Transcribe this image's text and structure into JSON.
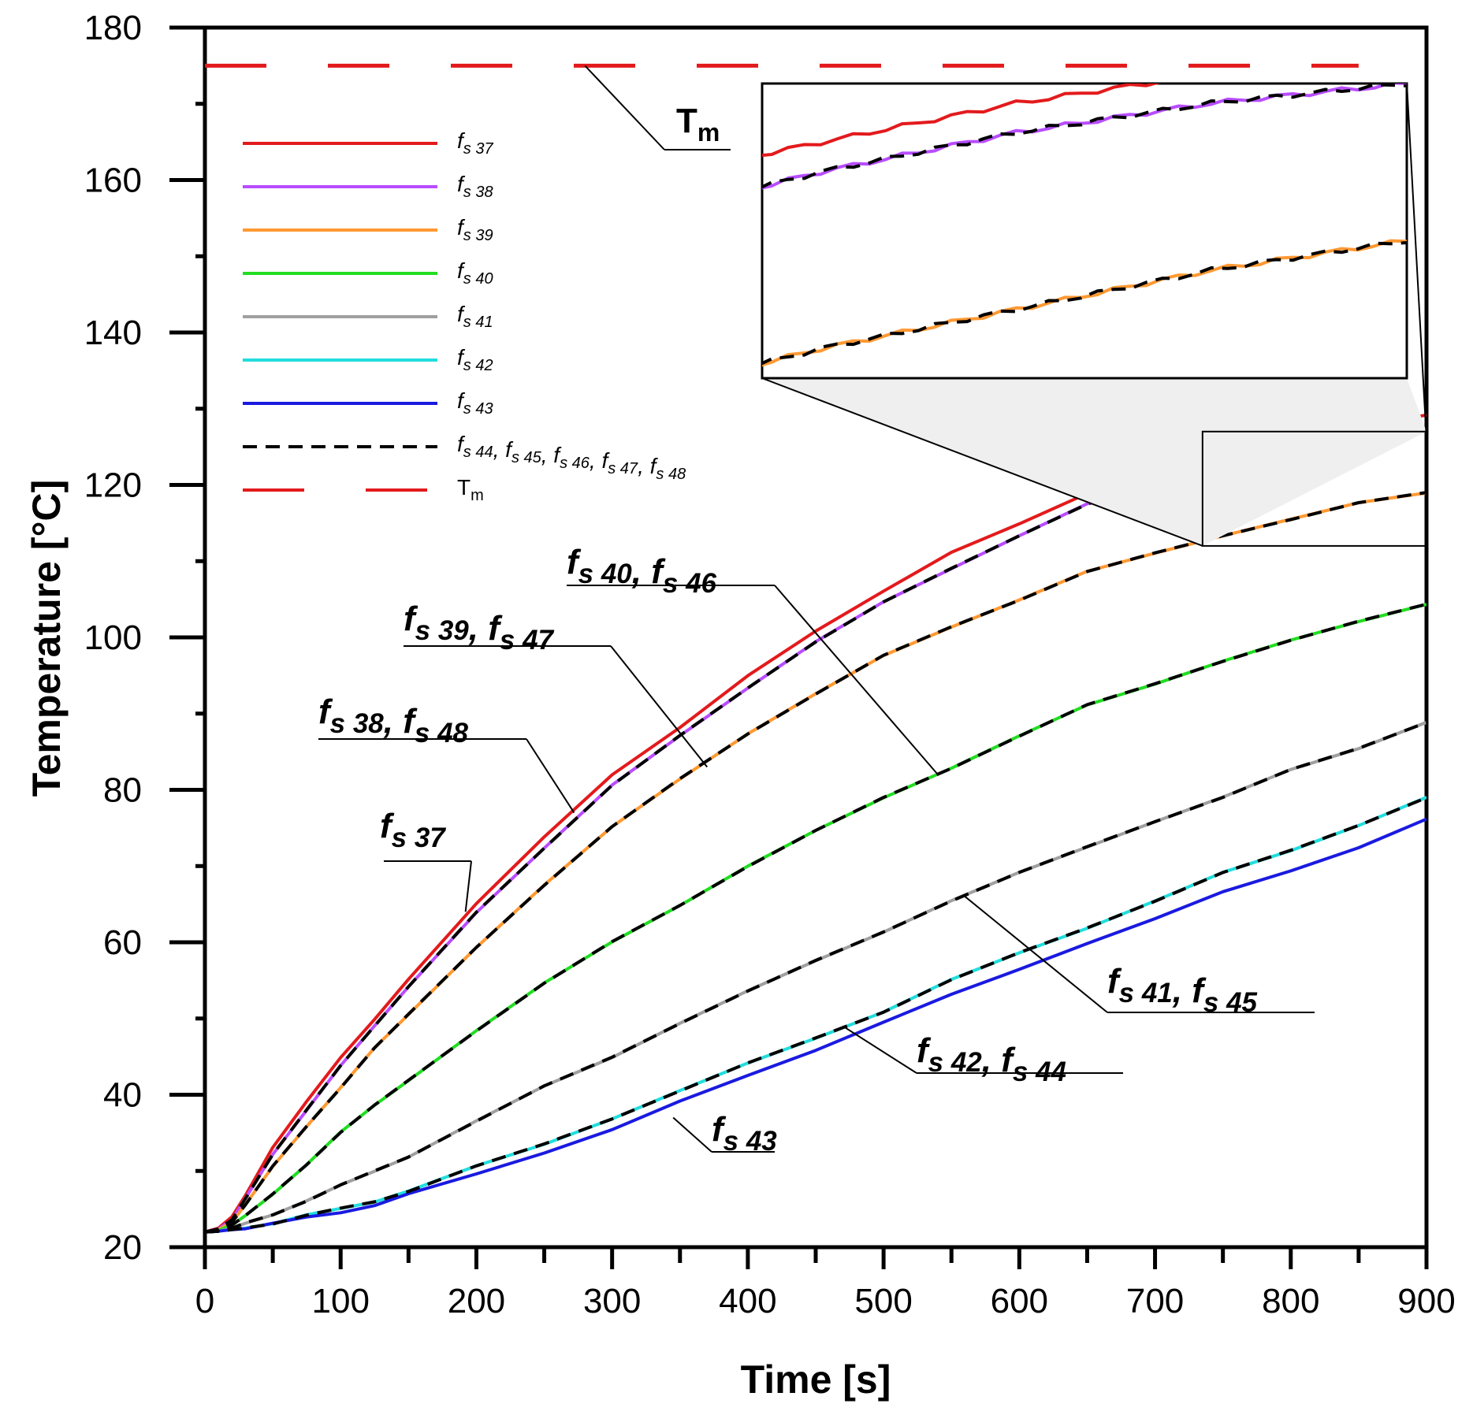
{
  "chart_data": {
    "type": "line",
    "xlabel": "Time [s]",
    "ylabel": "Temperature [°C]",
    "xlim": [
      0,
      900
    ],
    "ylim": [
      20,
      180
    ],
    "x_ticks": [
      0,
      100,
      200,
      300,
      400,
      500,
      600,
      700,
      800,
      900
    ],
    "y_ticks": [
      20,
      40,
      60,
      80,
      100,
      120,
      140,
      160,
      180
    ],
    "x": [
      0,
      10,
      20,
      30,
      50,
      75,
      100,
      125,
      150,
      200,
      250,
      300,
      350,
      400,
      450,
      500,
      550,
      600,
      650,
      700,
      750,
      800,
      850,
      900
    ],
    "series": [
      {
        "id": "fs37",
        "name": "f",
        "sub": "s 37",
        "color": "#e31a1c",
        "dash": "solid",
        "values": [
          22,
          22.5,
          24,
          27,
          33,
          39,
          45,
          50,
          55,
          65,
          74,
          82,
          88,
          95,
          101,
          106,
          111,
          115,
          119,
          122,
          124,
          126,
          127.5,
          129
        ]
      },
      {
        "id": "fs38",
        "name": "f",
        "sub": "s 38",
        "color": "#b84dff",
        "dash": "solid",
        "values": [
          22,
          22.4,
          23.6,
          26.5,
          32,
          38,
          44,
          49,
          54,
          64,
          72.5,
          80.5,
          87,
          93.5,
          99.5,
          104.5,
          109,
          113.5,
          117.5,
          120,
          122.5,
          124.5,
          126,
          127
        ]
      },
      {
        "id": "fs39",
        "name": "f",
        "sub": "s 39",
        "color": "#ff9933",
        "dash": "solid",
        "values": [
          22,
          22.3,
          23.3,
          25.5,
          30.5,
          36,
          41,
          46,
          50.5,
          59.5,
          67.5,
          75,
          81.5,
          87.5,
          92.5,
          97.5,
          101.5,
          105,
          108.5,
          111,
          113.5,
          115.5,
          117.5,
          119
        ]
      },
      {
        "id": "fs40",
        "name": "f",
        "sub": "s 40",
        "color": "#22dd22",
        "dash": "solid",
        "values": [
          22,
          22.2,
          22.9,
          24,
          27,
          31,
          35,
          38.5,
          42,
          48.5,
          54.5,
          60,
          65,
          70,
          74.5,
          79,
          83,
          87,
          91,
          94,
          97,
          99.5,
          102,
          104.5
        ]
      },
      {
        "id": "fs41",
        "name": "f",
        "sub": "s 41",
        "color": "#a0a0a0",
        "dash": "solid",
        "values": [
          22,
          22.1,
          22.5,
          23.1,
          24.4,
          26.1,
          28,
          30,
          32,
          36.5,
          41,
          45,
          49.5,
          53.5,
          57.5,
          61.5,
          65.5,
          69,
          72.5,
          76,
          79,
          82.5,
          85.5,
          89
        ]
      },
      {
        "id": "fs42",
        "name": "f",
        "sub": "s 42",
        "color": "#22dddd",
        "dash": "solid",
        "values": [
          22,
          22.1,
          22.3,
          22.6,
          23.2,
          24.1,
          25,
          26.1,
          27.4,
          30.5,
          33.5,
          37,
          40.5,
          44,
          47.5,
          51,
          55,
          58.5,
          62,
          65.5,
          69,
          72,
          75.5,
          79
        ]
      },
      {
        "id": "fs43",
        "name": "f",
        "sub": "s 43",
        "color": "#1a1ae0",
        "dash": "solid",
        "values": [
          22,
          22.1,
          22.3,
          22.6,
          23.1,
          23.8,
          24.6,
          25.6,
          26.9,
          29.5,
          32.5,
          35.5,
          39,
          42.5,
          46,
          49.5,
          53,
          56.5,
          60,
          63,
          66.5,
          69.5,
          72.5,
          76
        ]
      },
      {
        "id": "fs48",
        "name": "f",
        "sub": "s 48",
        "color": "#000000",
        "dash": "dashed",
        "values": [
          22,
          22.4,
          23.6,
          26.5,
          32,
          38,
          44,
          49,
          54,
          64,
          72.5,
          80.5,
          87,
          93.5,
          99.5,
          104.5,
          109,
          113.5,
          117.5,
          120,
          122.5,
          124.5,
          126,
          127
        ]
      },
      {
        "id": "fs47",
        "name": "f",
        "sub": "s 47",
        "color": "#000000",
        "dash": "dashed",
        "values": [
          22,
          22.3,
          23.3,
          25.5,
          30.5,
          36,
          41,
          46,
          50.5,
          59.5,
          67.5,
          75,
          81.5,
          87.5,
          92.5,
          97.5,
          101.5,
          105,
          108.5,
          111,
          113.5,
          115.5,
          117.5,
          119
        ]
      },
      {
        "id": "fs46",
        "name": "f",
        "sub": "s 46",
        "color": "#000000",
        "dash": "dashed",
        "values": [
          22,
          22.2,
          22.9,
          24,
          27,
          31,
          35,
          38.5,
          42,
          48.5,
          54.5,
          60,
          65,
          70,
          74.5,
          79,
          83,
          87,
          91,
          94,
          97,
          99.5,
          102,
          104.5
        ]
      },
      {
        "id": "fs45",
        "name": "f",
        "sub": "s 45",
        "color": "#000000",
        "dash": "dashed",
        "values": [
          22,
          22.1,
          22.5,
          23.1,
          24.4,
          26.1,
          28,
          30,
          32,
          36.5,
          41,
          45,
          49.5,
          53.5,
          57.5,
          61.5,
          65.5,
          69,
          72.5,
          76,
          79,
          82.5,
          85.5,
          89
        ]
      },
      {
        "id": "fs44",
        "name": "f",
        "sub": "s 44",
        "color": "#000000",
        "dash": "dashed",
        "values": [
          22,
          22.1,
          22.3,
          22.6,
          23.2,
          24.1,
          25,
          26.1,
          27.4,
          30.5,
          33.5,
          37,
          40.5,
          44,
          47.5,
          51,
          55,
          58.5,
          62,
          65.5,
          69,
          72,
          75.5,
          79
        ]
      }
    ],
    "reference_line": {
      "name": "T",
      "sub": "m",
      "y": 175,
      "color": "#e31a1c",
      "dash": "long-dash",
      "x_range": [
        0,
        850
      ]
    },
    "legend": {
      "position": "top-left",
      "entries": [
        {
          "text": "f",
          "sub": "s 37",
          "color": "#e31a1c",
          "dash": "solid"
        },
        {
          "text": "f",
          "sub": "s 38",
          "color": "#b84dff",
          "dash": "solid"
        },
        {
          "text": "f",
          "sub": "s 39",
          "color": "#ff9933",
          "dash": "solid"
        },
        {
          "text": "f",
          "sub": "s 40",
          "color": "#22dd22",
          "dash": "solid"
        },
        {
          "text": "f",
          "sub": "s 41",
          "color": "#a0a0a0",
          "dash": "solid"
        },
        {
          "text": "f",
          "sub": "s 42",
          "color": "#22dddd",
          "dash": "solid"
        },
        {
          "text": "f",
          "sub": "s 43",
          "color": "#1a1ae0",
          "dash": "solid"
        },
        {
          "text": "f",
          "sub": "s 44, f",
          "sub2": "",
          "color": "#000000",
          "dash": "dashed",
          "label": "fs 44, fs 45, fs 46, fs 47, fs 48",
          "parts": [
            {
              "t": "f",
              "s": "s 44"
            },
            {
              "t": ", f",
              "s": "s 45"
            },
            {
              "t": ", f",
              "s": "s 46"
            },
            {
              "t": ", f",
              "s": "s 47"
            },
            {
              "t": ", f",
              "s": "s 48"
            }
          ]
        },
        {
          "text": "T",
          "sub": "m",
          "color": "#e31a1c",
          "dash": "long-dash"
        }
      ]
    },
    "annotations": [
      {
        "id": "ann-tm",
        "parts": [
          {
            "t": "T",
            "s": "m"
          }
        ],
        "point": [
          280,
          175
        ],
        "italic": false
      },
      {
        "id": "ann-fs37",
        "parts": [
          {
            "t": "f",
            "s": "s 37"
          }
        ],
        "point": [
          192,
          64
        ]
      },
      {
        "id": "ann-fs38-48",
        "parts": [
          {
            "t": "f",
            "s": "s 38"
          },
          {
            "t": ", f",
            "s": "s 48"
          }
        ],
        "point": [
          272,
          77
        ]
      },
      {
        "id": "ann-fs39-47",
        "parts": [
          {
            "t": "f",
            "s": "s 39"
          },
          {
            "t": ", f",
            "s": "s 47"
          }
        ],
        "point": [
          370,
          83
        ]
      },
      {
        "id": "ann-fs40-46",
        "parts": [
          {
            "t": "f",
            "s": "s 40"
          },
          {
            "t": ", f",
            "s": "s 46"
          }
        ],
        "point": [
          540,
          82
        ]
      },
      {
        "id": "ann-fs41-45",
        "parts": [
          {
            "t": "f",
            "s": "s 41"
          },
          {
            "t": ", f",
            "s": "s 45"
          }
        ],
        "point": [
          560,
          66
        ]
      },
      {
        "id": "ann-fs42-44",
        "parts": [
          {
            "t": "f",
            "s": "s 42"
          },
          {
            "t": ", f",
            "s": "s 44"
          }
        ],
        "point": [
          470,
          49
        ]
      },
      {
        "id": "ann-fs43",
        "parts": [
          {
            "t": "f",
            "s": "s 43"
          }
        ],
        "point": [
          345,
          37
        ]
      }
    ],
    "inset": {
      "description": "zoomed view",
      "x_range": [
        735,
        900
      ],
      "y_range": [
        112,
        127
      ]
    }
  }
}
